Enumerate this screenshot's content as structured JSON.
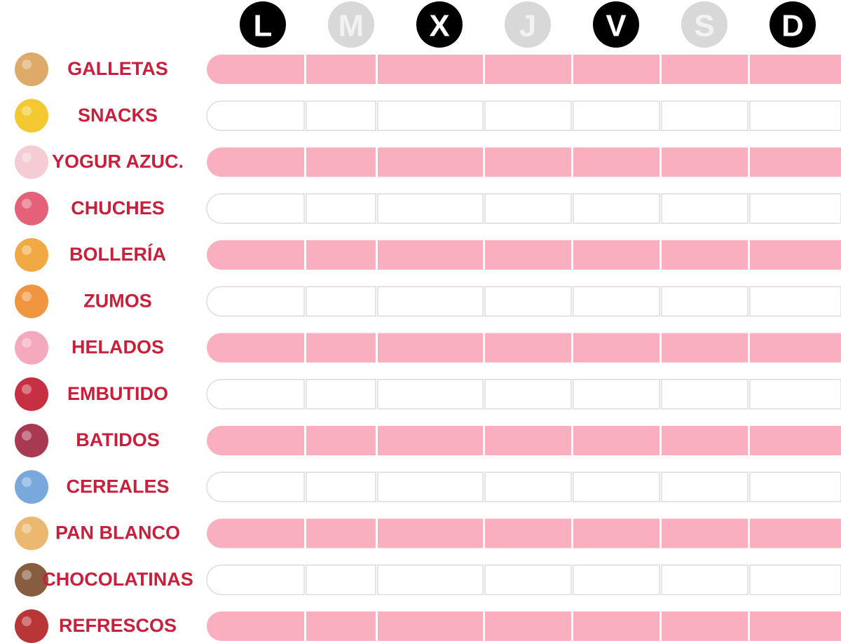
{
  "days": [
    "L",
    "M",
    "X",
    "J",
    "V",
    "S",
    "D"
  ],
  "foods": [
    "GALLETAS",
    "SNACKS",
    "YOGUR AZUC.",
    "CHUCHES",
    "BOLLERÍA",
    "ZUMOS",
    "HELADOS",
    "EMBUTIDO",
    "BATIDOS",
    "CEREALES",
    "PAN BLANCO",
    "CHOCOLATINAS",
    "REFRESCOS"
  ]
}
